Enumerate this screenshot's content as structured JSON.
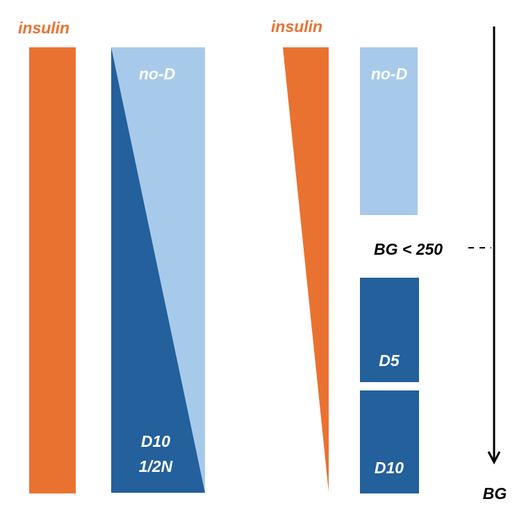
{
  "colors": {
    "insulin": "#EA7231",
    "dextrose": "#23609C",
    "no_dextrose": "#A7CAEB",
    "axis": "#000000"
  },
  "left_panel": {
    "insulin_label": "insulin",
    "fluid_top_label": "no-D",
    "fluid_bottom_label_line1": "D10",
    "fluid_bottom_label_line2": "1/2N"
  },
  "right_panel": {
    "insulin_label": "insulin",
    "no_d_label": "no-D",
    "d5_label": "D5",
    "d10_label": "D10",
    "threshold_label": "BG < 250",
    "axis_label": "BG"
  }
}
